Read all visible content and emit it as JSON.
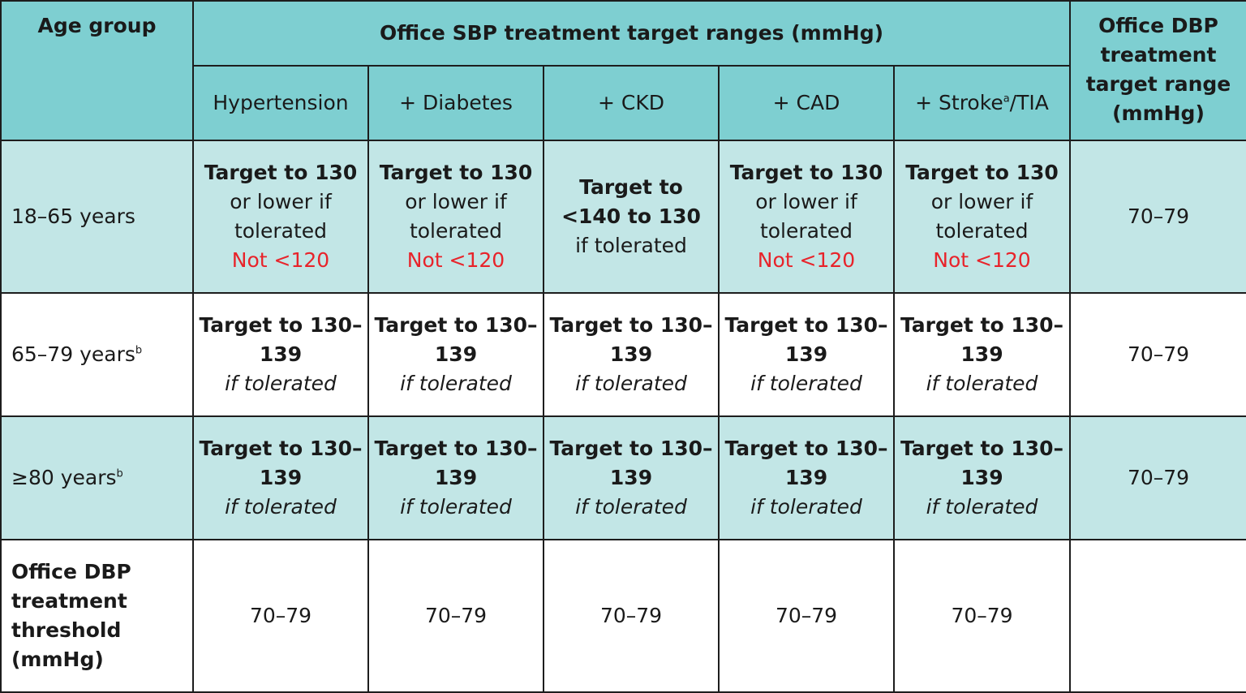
{
  "header": {
    "age_group": "Age group",
    "sbp_title": "Office SBP treatment target ranges (mmHg)",
    "dbp_title": "Office DBP treatment target range (mmHg)",
    "conditions": [
      {
        "label": "Hypertension",
        "sup": ""
      },
      {
        "label": "+ Diabetes",
        "sup": ""
      },
      {
        "label": "+ CKD",
        "sup": ""
      },
      {
        "label": "+  CAD",
        "sup": ""
      },
      {
        "label": "+  Stroke",
        "sup": "a",
        "suffix": "/TIA"
      }
    ]
  },
  "rows": [
    {
      "age": "18–65 years",
      "age_sup": "",
      "cells": [
        {
          "bold": "Target to 130",
          "normal": "or lower if tolerated",
          "red": "Not <120"
        },
        {
          "bold": "Target to 130",
          "normal": "or lower if tolerated",
          "red": "Not <120"
        },
        {
          "bold": "Target to <140 to 130",
          "normal": "if tolerated",
          "red": ""
        },
        {
          "bold": "Target to 130",
          "normal": "or lower if tolerated",
          "red": "Not <120"
        },
        {
          "bold": "Target to 130",
          "normal": "or lower if tolerated",
          "red": "Not <120"
        }
      ],
      "dbp": "70–79"
    },
    {
      "age": "65–79 years",
      "age_sup": "b",
      "cells": [
        {
          "bold": "Target to 130–139",
          "italic": "if tolerated"
        },
        {
          "bold": "Target to 130–139",
          "italic": "if tolerated"
        },
        {
          "bold": "Target to 130–139",
          "italic": "if tolerated"
        },
        {
          "bold": "Target to 130–139",
          "italic": "if tolerated"
        },
        {
          "bold": "Target to 130–139",
          "italic": "if tolerated"
        }
      ],
      "dbp": "70–79"
    },
    {
      "age": "≥80 years",
      "age_sup": "b",
      "cells": [
        {
          "bold": "Target to 130–139",
          "italic": "if tolerated"
        },
        {
          "bold": "Target to 130–139",
          "italic": "if tolerated"
        },
        {
          "bold": "Target to 130–139",
          "italic": "if tolerated"
        },
        {
          "bold": "Target to 130–139",
          "italic": "if tolerated"
        },
        {
          "bold": "Target to 130–139",
          "italic": "if tolerated"
        }
      ],
      "dbp": "70–79"
    }
  ],
  "threshold_row": {
    "label": "Office DBP treatment threshold (mmHg)",
    "values": [
      "70–79",
      "70–79",
      "70–79",
      "70–79",
      "70–79"
    ],
    "dbp": ""
  },
  "colors": {
    "header_bg": "#7ecfd1",
    "light_row_bg": "#c2e6e6",
    "warning_red": "#e8232a",
    "border": "#1d1d1d"
  }
}
